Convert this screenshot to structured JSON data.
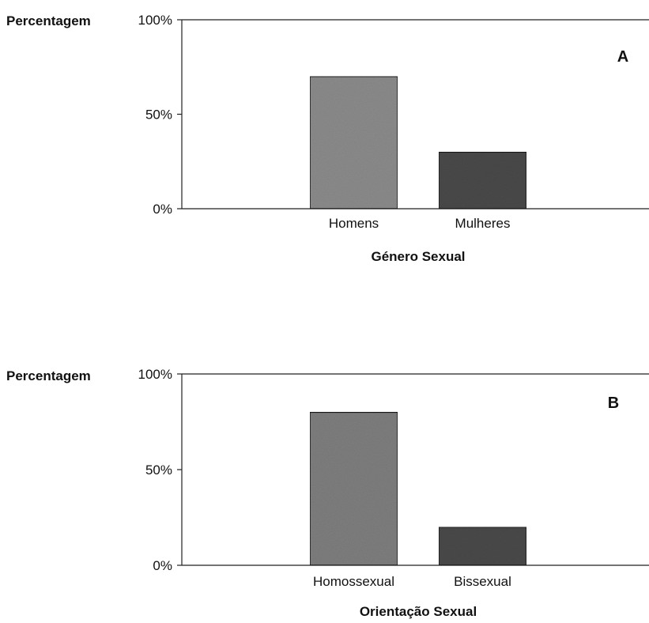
{
  "chart_data": [
    {
      "type": "bar",
      "panel_label": "A",
      "ylabel": "Percentagem",
      "xlabel": "Género Sexual",
      "categories": [
        "Homens",
        "Mulheres"
      ],
      "values": [
        70,
        30
      ],
      "ylim": [
        0,
        100
      ],
      "yticks": [
        "0%",
        "50%",
        "100%"
      ],
      "colors": [
        "#8c8c8c",
        "#4a4a4a"
      ],
      "grid": false
    },
    {
      "type": "bar",
      "panel_label": "B",
      "ylabel": "Percentagem",
      "xlabel": "Orientação Sexual",
      "categories": [
        "Homossexual",
        "Bissexual"
      ],
      "values": [
        80,
        20
      ],
      "ylim": [
        0,
        100
      ],
      "yticks": [
        "0%",
        "50%",
        "100%"
      ],
      "colors": [
        "#7f7f7f",
        "#4a4a4a"
      ],
      "grid": false
    }
  ]
}
